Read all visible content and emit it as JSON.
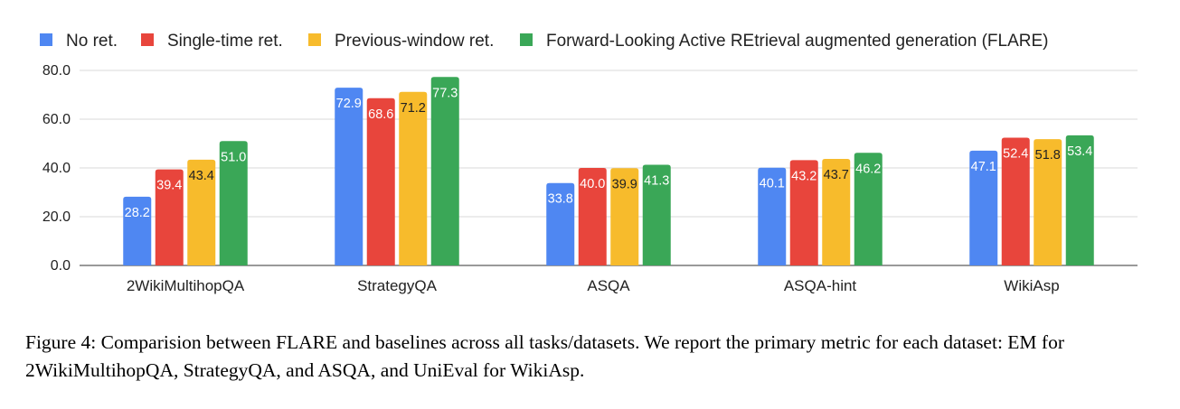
{
  "chart_data": {
    "type": "bar",
    "categories": [
      "2WikiMultihopQA",
      "StrategyQA",
      "ASQA",
      "ASQA-hint",
      "WikiAsp"
    ],
    "series": [
      {
        "name": "No ret.",
        "color": "#4f87f2",
        "values": [
          28.2,
          72.9,
          33.8,
          40.1,
          47.1
        ]
      },
      {
        "name": "Single-time ret.",
        "color": "#e8453c",
        "values": [
          39.4,
          68.6,
          40.0,
          43.2,
          52.4
        ]
      },
      {
        "name": "Previous-window ret.",
        "color": "#f7bb2c",
        "values": [
          43.4,
          71.2,
          39.9,
          43.7,
          51.8
        ]
      },
      {
        "name": "Forward-Looking Active REtrieval augmented generation (FLARE)",
        "color": "#3aa757",
        "values": [
          51.0,
          77.3,
          41.3,
          46.2,
          53.4
        ]
      }
    ],
    "data_labels": [
      [
        "28.2",
        "72.9",
        "33.8",
        "40.1",
        "47.1"
      ],
      [
        "39.4",
        "68.6",
        "40.0",
        "43.2",
        "52.4"
      ],
      [
        "43.4",
        "71.2",
        "39.9",
        "43.7",
        "51.8"
      ],
      [
        "51.0",
        "77.3",
        "41.3",
        "46.2",
        "53.4"
      ]
    ],
    "yticks": [
      "0.0",
      "20.0",
      "40.0",
      "60.0",
      "80.0"
    ],
    "ylim": [
      0,
      80
    ],
    "legend_position": "top",
    "grid": true
  },
  "caption": "Figure 4: Comparision between FLARE and baselines across all tasks/datasets. We report the primary metric for each dataset: EM for 2WikiMultihopQA, StrategyQA, and ASQA, and UniEval for WikiAsp."
}
